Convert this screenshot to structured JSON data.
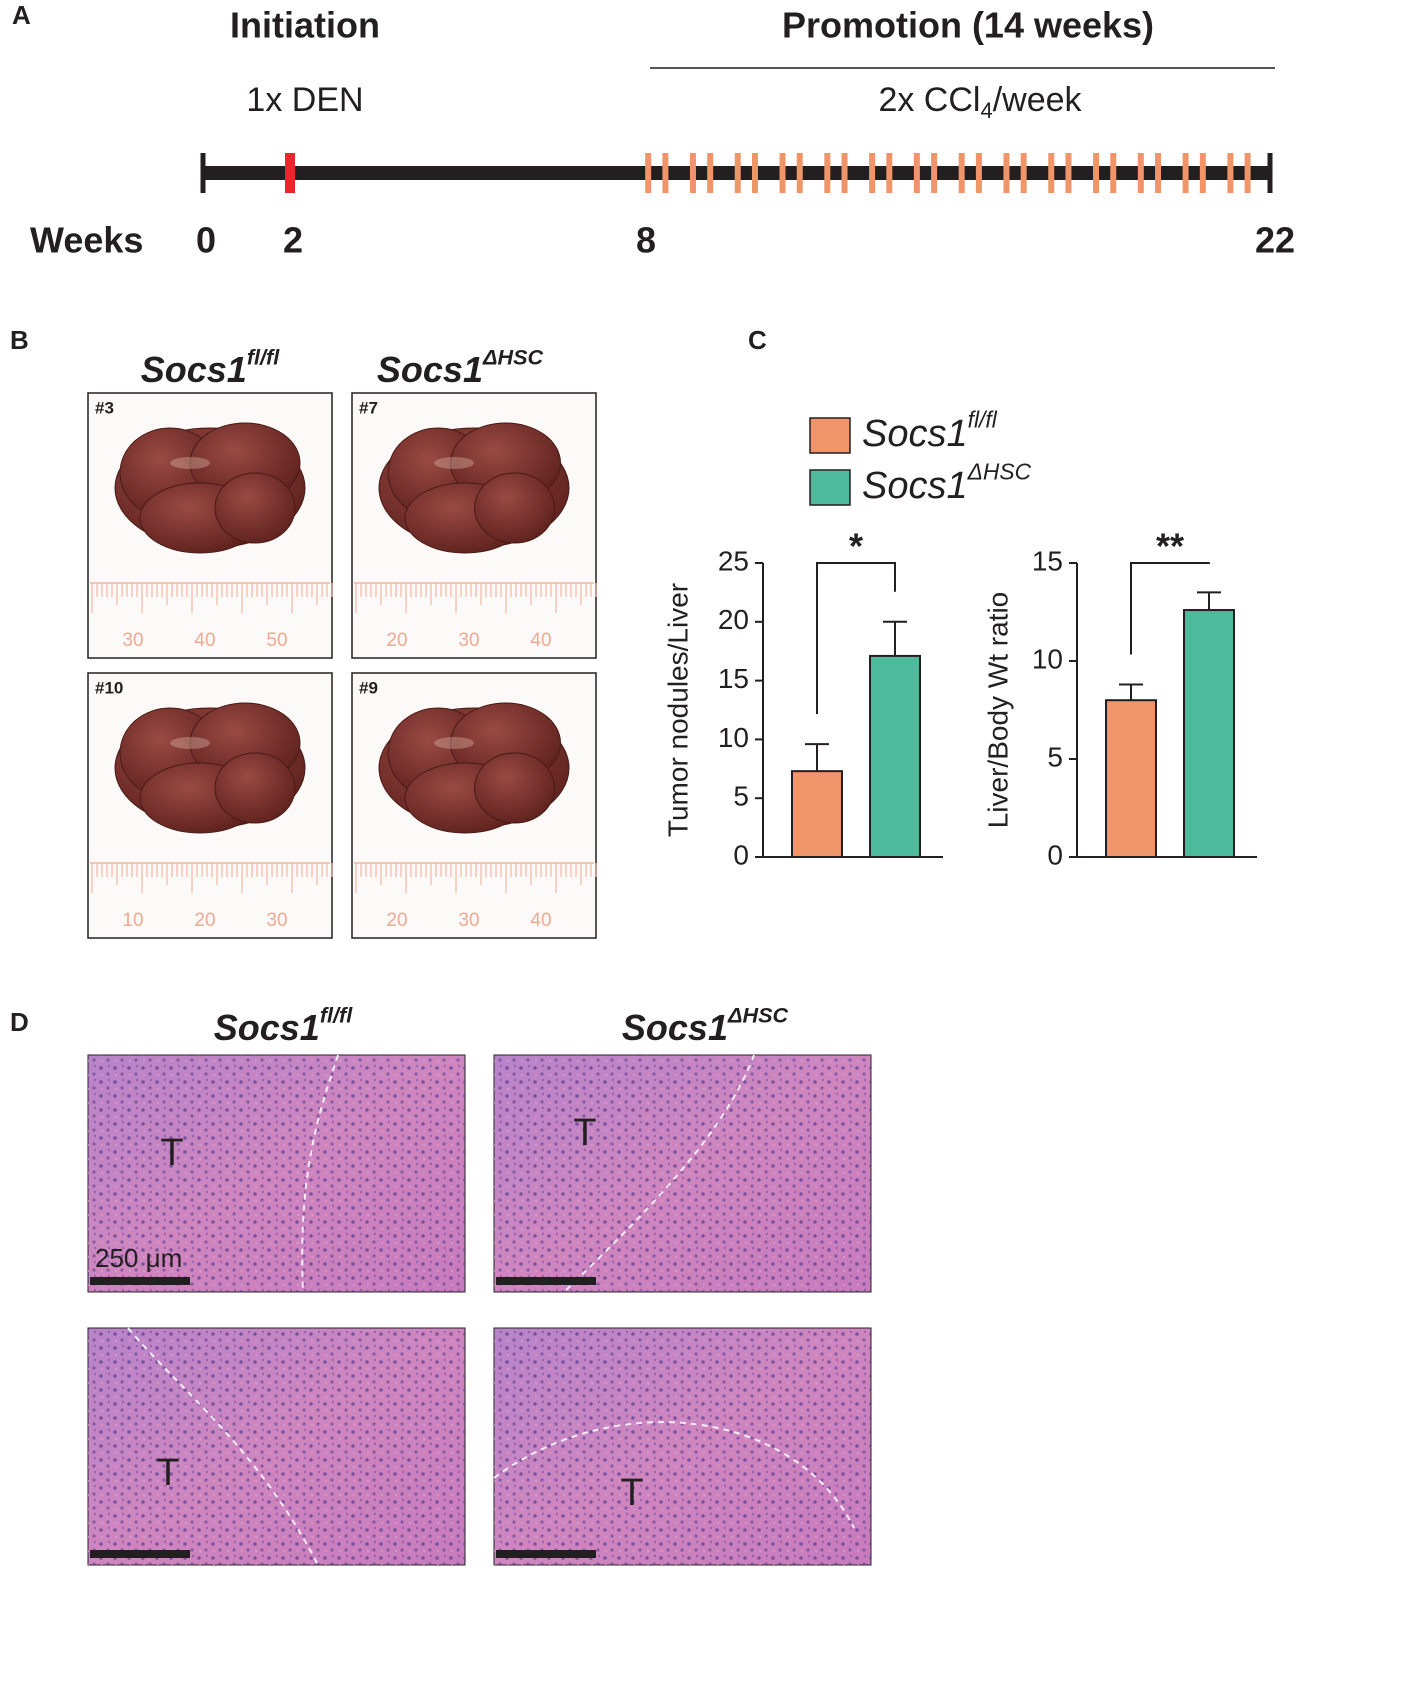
{
  "panel_a": {
    "label": "A",
    "initiation": "Initiation",
    "promotion": "Promotion (14 weeks)",
    "den": "1x DEN",
    "ccl4": [
      "2x CCl",
      "4",
      "/week"
    ],
    "weeks_label": "Weeks",
    "weeks": [
      0,
      2,
      8,
      22
    ],
    "den_color": "#e8262b",
    "ccl4_color": "#f0956a"
  },
  "panel_b": {
    "label": "B",
    "groups": [
      {
        "name": "Socs1",
        "sup": "fl/fl"
      },
      {
        "name": "Socs1",
        "sup": "ΔHSC"
      }
    ],
    "photos": [
      {
        "id": "#3",
        "ruler": [
          "30",
          "40",
          "50"
        ]
      },
      {
        "id": "#7",
        "ruler": [
          "20",
          "30",
          "40"
        ]
      },
      {
        "id": "#10",
        "ruler": [
          "10",
          "20",
          "30"
        ]
      },
      {
        "id": "#9",
        "ruler": [
          "20",
          "30",
          "40"
        ]
      }
    ]
  },
  "panel_c": {
    "label": "C",
    "legend": [
      {
        "name": "Socs1",
        "sup": "fl/fl",
        "color": "#f0956a"
      },
      {
        "name": "Socs1",
        "sup": "ΔHSC",
        "color": "#4dbb9b"
      }
    ]
  },
  "chart_data": [
    {
      "type": "bar",
      "y_label": "Tumor nodules/Liver",
      "categories": [
        null,
        null
      ],
      "values": [
        7.3,
        17.1
      ],
      "errors": [
        2.3,
        2.9
      ],
      "colors": [
        "#f0956a",
        "#4dbb9b"
      ],
      "ylim": [
        0,
        25
      ],
      "yticks": [
        0,
        5,
        10,
        15,
        20,
        25
      ],
      "significance": "*"
    },
    {
      "type": "bar",
      "y_label": "Liver/Body Wt ratio",
      "categories": [
        null,
        null
      ],
      "values": [
        8.0,
        12.6
      ],
      "errors": [
        0.8,
        0.9
      ],
      "colors": [
        "#f0956a",
        "#4dbb9b"
      ],
      "ylim": [
        0,
        15
      ],
      "yticks": [
        0,
        5,
        10,
        15
      ],
      "significance": "**"
    }
  ],
  "panel_d": {
    "label": "D",
    "groups": [
      {
        "name": "Socs1",
        "sup": "fl/fl"
      },
      {
        "name": "Socs1",
        "sup": "ΔHSC"
      }
    ],
    "images": [
      {
        "mark": "T"
      },
      {
        "mark": "T"
      },
      {
        "mark": "T"
      },
      {
        "mark": "T"
      }
    ],
    "scale_bar": "250 μm"
  }
}
